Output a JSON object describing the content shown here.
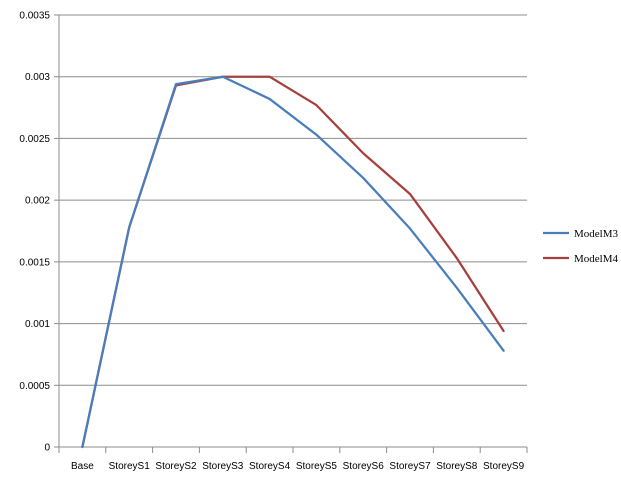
{
  "chart_data": {
    "type": "line",
    "title": "",
    "xlabel": "",
    "ylabel": "",
    "categories": [
      "Base",
      "StoreyS1",
      "StoreyS2",
      "StoreyS3",
      "StoreyS4",
      "StoreyS5",
      "StoreyS6",
      "StoreyS7",
      "StoreyS8",
      "StoreyS9"
    ],
    "ylim": [
      0,
      0.0035
    ],
    "yticks": [
      "0",
      "0.0005",
      "0.001",
      "0.0015",
      "0.002",
      "0.0025",
      "0.003",
      "0.0035"
    ],
    "grid": true,
    "legend_position": "right",
    "series": [
      {
        "name": "ModelM3",
        "color": "#4a7ebb",
        "values": [
          0,
          0.00178,
          0.00294,
          0.003,
          0.00282,
          0.00253,
          0.00218,
          0.00177,
          0.00129,
          0.00078
        ]
      },
      {
        "name": "ModelM4",
        "color": "#a5403d",
        "values": [
          0,
          0.00178,
          0.00293,
          0.003,
          0.003,
          0.00277,
          0.00238,
          0.00205,
          0.00153,
          0.00094
        ]
      }
    ]
  }
}
